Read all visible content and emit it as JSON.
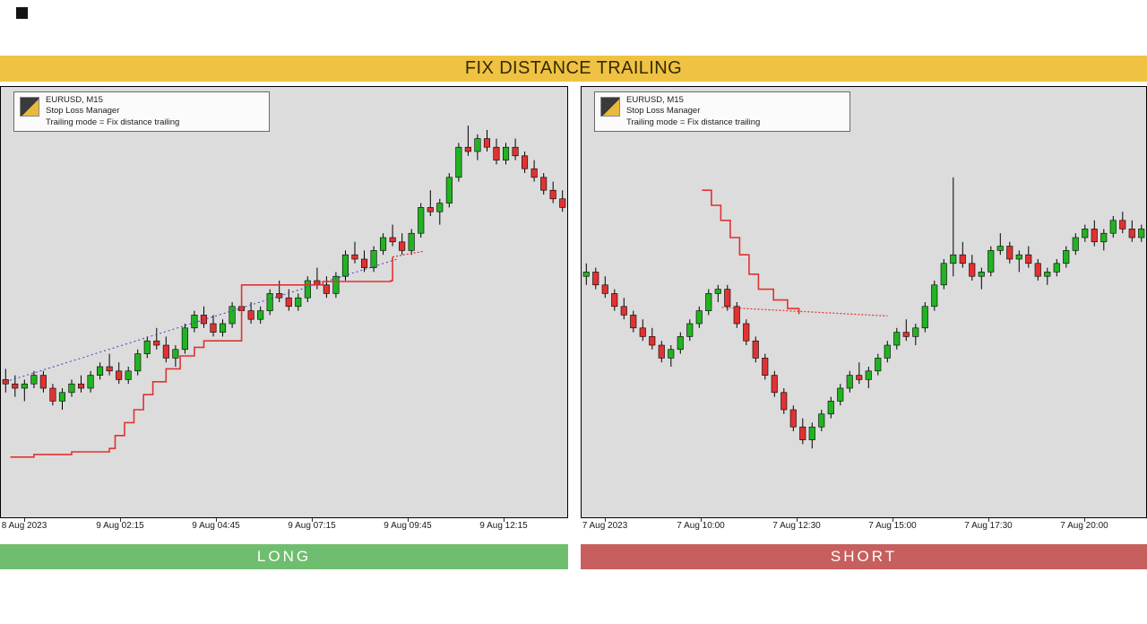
{
  "banner": {
    "title": "FIX DISTANCE TRAILING"
  },
  "side_labels": {
    "long": "LONG",
    "short": "SHORT"
  },
  "colors": {
    "banner_bg": "#efc243",
    "banner_text": "#352b00",
    "long_bg": "#6fbe6f",
    "short_bg": "#c75f5f",
    "chart_bg": "#dcdcdc",
    "up": "#22b322",
    "down": "#e03232",
    "wick": "#000000",
    "trailing": "#e03232",
    "trend": "#3c3cc8"
  },
  "chart_data": [
    {
      "type": "candlestick",
      "position": "LONG",
      "info": {
        "line1": "EURUSD, M15",
        "line2": "Stop Loss Manager",
        "line3": "Trailing mode = Fix distance trailing"
      },
      "x_tick_labels": [
        "8 Aug 2023",
        "9 Aug 02:15",
        "9 Aug 04:45",
        "9 Aug 07:15",
        "9 Aug 09:45",
        "9 Aug 12:15"
      ],
      "ylim": [
        0,
        100
      ],
      "candles": [
        [
          32,
          34.5,
          29,
          31
        ],
        [
          31,
          33,
          28,
          30
        ],
        [
          30,
          32,
          27,
          31
        ],
        [
          31,
          34,
          30,
          33
        ],
        [
          33,
          34,
          29,
          30
        ],
        [
          30,
          31,
          26,
          27
        ],
        [
          27,
          30,
          25,
          29
        ],
        [
          29,
          32,
          28,
          31
        ],
        [
          31,
          33,
          29,
          30
        ],
        [
          30,
          34,
          29,
          33
        ],
        [
          33,
          36,
          32,
          35
        ],
        [
          35,
          38,
          33,
          34
        ],
        [
          34,
          36,
          31,
          32
        ],
        [
          32,
          35,
          31,
          34
        ],
        [
          34,
          39,
          33,
          38
        ],
        [
          38,
          42,
          37,
          41
        ],
        [
          41,
          44,
          39,
          40
        ],
        [
          40,
          42,
          36,
          37
        ],
        [
          37,
          40,
          35,
          39
        ],
        [
          39,
          45,
          38,
          44
        ],
        [
          44,
          48,
          43,
          47
        ],
        [
          47,
          49,
          44,
          45
        ],
        [
          45,
          47,
          42,
          43
        ],
        [
          43,
          46,
          42,
          45
        ],
        [
          45,
          50,
          44,
          49
        ],
        [
          49,
          52,
          47,
          48
        ],
        [
          48,
          50,
          45,
          46
        ],
        [
          46,
          49,
          45,
          48
        ],
        [
          48,
          53,
          47,
          52
        ],
        [
          52,
          55,
          50,
          51
        ],
        [
          51,
          53,
          48,
          49
        ],
        [
          49,
          52,
          48,
          51
        ],
        [
          51,
          56,
          50,
          55
        ],
        [
          55,
          58,
          53,
          54
        ],
        [
          54,
          56,
          51,
          52
        ],
        [
          52,
          57,
          51,
          56
        ],
        [
          56,
          62,
          55,
          61
        ],
        [
          61,
          64,
          59,
          60
        ],
        [
          60,
          62,
          57,
          58
        ],
        [
          58,
          63,
          57,
          62
        ],
        [
          62,
          66,
          61,
          65
        ],
        [
          65,
          68,
          63,
          64
        ],
        [
          64,
          66,
          61,
          62
        ],
        [
          62,
          67,
          61,
          66
        ],
        [
          66,
          73,
          65,
          72
        ],
        [
          72,
          76,
          70,
          71
        ],
        [
          71,
          74,
          68,
          73
        ],
        [
          73,
          80,
          72,
          79
        ],
        [
          79,
          87,
          78,
          86
        ],
        [
          86,
          91,
          84,
          85
        ],
        [
          85,
          89,
          83,
          88
        ],
        [
          88,
          90,
          85,
          86
        ],
        [
          86,
          88,
          82,
          83
        ],
        [
          83,
          87,
          82,
          86
        ],
        [
          86,
          88,
          83,
          84
        ],
        [
          84,
          85,
          80,
          81
        ],
        [
          81,
          83,
          78,
          79
        ],
        [
          79,
          80,
          75,
          76
        ],
        [
          76,
          78,
          73,
          74
        ],
        [
          74,
          76,
          71,
          72
        ]
      ],
      "overlays": [
        {
          "name": "entry-trend-line",
          "style": "line",
          "color": "#3c3cc8",
          "width": 1,
          "dash": "2 3",
          "points": [
            [
              0,
              31.5
            ],
            [
              41.5,
              60
            ]
          ]
        },
        {
          "name": "trailing-stop-line",
          "style": "step",
          "color": "#e03232",
          "width": 1.6,
          "points": [
            [
              0.5,
              14
            ],
            [
              3,
              14.6
            ],
            [
              7,
              15.2
            ],
            [
              11,
              16
            ],
            [
              11.6,
              19
            ],
            [
              12.6,
              22
            ],
            [
              13.6,
              25
            ],
            [
              14.6,
              28.5
            ],
            [
              15.6,
              31.5
            ],
            [
              17,
              34.5
            ],
            [
              18.5,
              37.5
            ],
            [
              20,
              39.5
            ],
            [
              21,
              41
            ],
            [
              24.8,
              41
            ],
            [
              25,
              54
            ],
            [
              33.3,
              54
            ],
            [
              33.6,
              54.8
            ],
            [
              40.8,
              55
            ],
            [
              41,
              60.5
            ]
          ]
        },
        {
          "name": "trailing-stop-projection",
          "style": "line",
          "color": "#e03232",
          "width": 1.2,
          "dash": "2 2",
          "points": [
            [
              41,
              60.5
            ],
            [
              44.2,
              61.8
            ]
          ]
        }
      ]
    },
    {
      "type": "candlestick",
      "position": "SHORT",
      "info": {
        "line1": "EURUSD, M15",
        "line2": "Stop Loss Manager",
        "line3": "Trailing mode = Fix distance trailing"
      },
      "x_tick_labels": [
        "7 Aug 2023",
        "7 Aug 10:00",
        "7 Aug 12:30",
        "7 Aug 15:00",
        "7 Aug 17:30",
        "7 Aug 20:00"
      ],
      "ylim": [
        0,
        100
      ],
      "candles": [
        [
          56,
          59,
          54,
          57
        ],
        [
          57,
          58,
          53,
          54
        ],
        [
          54,
          56,
          51,
          52
        ],
        [
          52,
          53,
          48,
          49
        ],
        [
          49,
          51,
          46,
          47
        ],
        [
          47,
          48,
          43,
          44
        ],
        [
          44,
          46,
          41,
          42
        ],
        [
          42,
          44,
          39,
          40
        ],
        [
          40,
          41,
          36,
          37
        ],
        [
          37,
          40,
          35,
          39
        ],
        [
          39,
          43,
          38,
          42
        ],
        [
          42,
          46,
          41,
          45
        ],
        [
          45,
          49,
          44,
          48
        ],
        [
          48,
          53,
          47,
          52
        ],
        [
          52,
          54,
          50,
          53
        ],
        [
          53,
          54,
          48,
          49
        ],
        [
          49,
          50,
          44,
          45
        ],
        [
          45,
          46,
          40,
          41
        ],
        [
          41,
          42,
          36,
          37
        ],
        [
          37,
          38,
          32,
          33
        ],
        [
          33,
          34,
          28,
          29
        ],
        [
          29,
          30,
          24,
          25
        ],
        [
          25,
          26,
          20,
          21
        ],
        [
          21,
          23,
          17,
          18
        ],
        [
          18,
          22,
          16,
          21
        ],
        [
          21,
          25,
          20,
          24
        ],
        [
          24,
          28,
          23,
          27
        ],
        [
          27,
          31,
          26,
          30
        ],
        [
          30,
          34,
          29,
          33
        ],
        [
          33,
          36,
          31,
          32
        ],
        [
          32,
          35,
          30,
          34
        ],
        [
          34,
          38,
          33,
          37
        ],
        [
          37,
          41,
          36,
          40
        ],
        [
          40,
          44,
          39,
          43
        ],
        [
          43,
          46,
          41,
          42
        ],
        [
          42,
          45,
          40,
          44
        ],
        [
          44,
          50,
          43,
          49
        ],
        [
          49,
          55,
          48,
          54
        ],
        [
          54,
          60,
          53,
          59
        ],
        [
          59,
          79,
          56,
          61
        ],
        [
          61,
          64,
          58,
          59
        ],
        [
          59,
          61,
          55,
          56
        ],
        [
          56,
          58,
          53,
          57
        ],
        [
          57,
          63,
          56,
          62
        ],
        [
          62,
          66,
          61,
          63
        ],
        [
          63,
          64,
          59,
          60
        ],
        [
          60,
          62,
          57,
          61
        ],
        [
          61,
          63,
          58,
          59
        ],
        [
          59,
          60,
          55,
          56
        ],
        [
          56,
          58,
          54,
          57
        ],
        [
          57,
          60,
          56,
          59
        ],
        [
          59,
          63,
          58,
          62
        ],
        [
          62,
          66,
          61,
          65
        ],
        [
          65,
          68,
          64,
          67
        ],
        [
          67,
          69,
          63,
          64
        ],
        [
          64,
          67,
          62,
          66
        ],
        [
          66,
          70,
          65,
          69
        ],
        [
          69,
          71,
          66,
          67
        ],
        [
          67,
          69,
          64,
          65
        ],
        [
          65,
          68,
          64,
          67
        ]
      ],
      "overlays": [
        {
          "name": "trailing-stop-line",
          "style": "step",
          "color": "#e03232",
          "width": 1.6,
          "points": [
            [
              12.3,
              76
            ],
            [
              13.3,
              72.5
            ],
            [
              14.3,
              69
            ],
            [
              15.3,
              65
            ],
            [
              16.3,
              61
            ],
            [
              17.3,
              56.5
            ],
            [
              18.3,
              53
            ],
            [
              19.9,
              50.5
            ],
            [
              21.4,
              48.5
            ],
            [
              22.6,
              47.2
            ]
          ]
        },
        {
          "name": "trailing-stop-projection",
          "style": "line",
          "color": "#e03232",
          "width": 1.2,
          "dash": "2 2",
          "points": [
            [
              14.4,
              48.8
            ],
            [
              32,
              46.8
            ]
          ]
        }
      ]
    }
  ]
}
